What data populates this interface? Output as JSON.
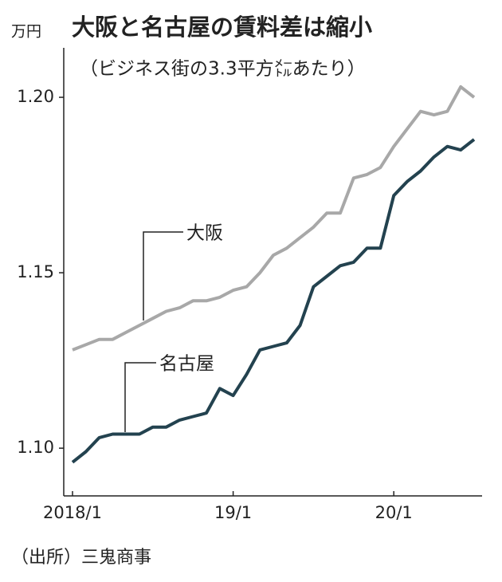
{
  "chart_data": {
    "type": "line",
    "title": "大阪と名古屋の賃料差は縮小",
    "subtitle": "（ビジネス街の3.3平方㍍あたり）",
    "y_unit": "万円",
    "source": "（出所）三鬼商事",
    "categories": [
      "2018/1",
      null,
      null,
      null,
      null,
      null,
      null,
      null,
      null,
      null,
      null,
      null,
      "19/1",
      null,
      null,
      null,
      null,
      null,
      null,
      null,
      null,
      null,
      null,
      null,
      "20/1",
      null,
      null,
      null,
      null,
      null,
      null
    ],
    "series": [
      {
        "name": "大阪",
        "color": "#a8a8a8",
        "values": [
          1.128,
          1.1295,
          1.131,
          1.131,
          1.133,
          1.135,
          1.137,
          1.139,
          1.14,
          1.142,
          1.142,
          1.143,
          1.145,
          1.146,
          1.15,
          1.155,
          1.157,
          1.16,
          1.163,
          1.167,
          1.167,
          1.177,
          1.178,
          1.18,
          1.186,
          1.191,
          1.196,
          1.195,
          1.196,
          1.203,
          1.2
        ]
      },
      {
        "name": "名古屋",
        "color": "#23424f",
        "values": [
          1.096,
          1.099,
          1.103,
          1.104,
          1.104,
          1.104,
          1.106,
          1.106,
          1.108,
          1.109,
          1.11,
          1.117,
          1.115,
          1.121,
          1.128,
          1.129,
          1.13,
          1.135,
          1.146,
          1.149,
          1.152,
          1.153,
          1.157,
          1.157,
          1.172,
          1.176,
          1.179,
          1.183,
          1.186,
          1.185,
          1.188
        ]
      }
    ],
    "ylim": [
      1.0864,
      1.2141
    ],
    "yticks": [
      {
        "value": 1.1,
        "label": "1.10"
      },
      1.15,
      {
        "value": 1.2,
        "label": "1.20"
      }
    ]
  }
}
